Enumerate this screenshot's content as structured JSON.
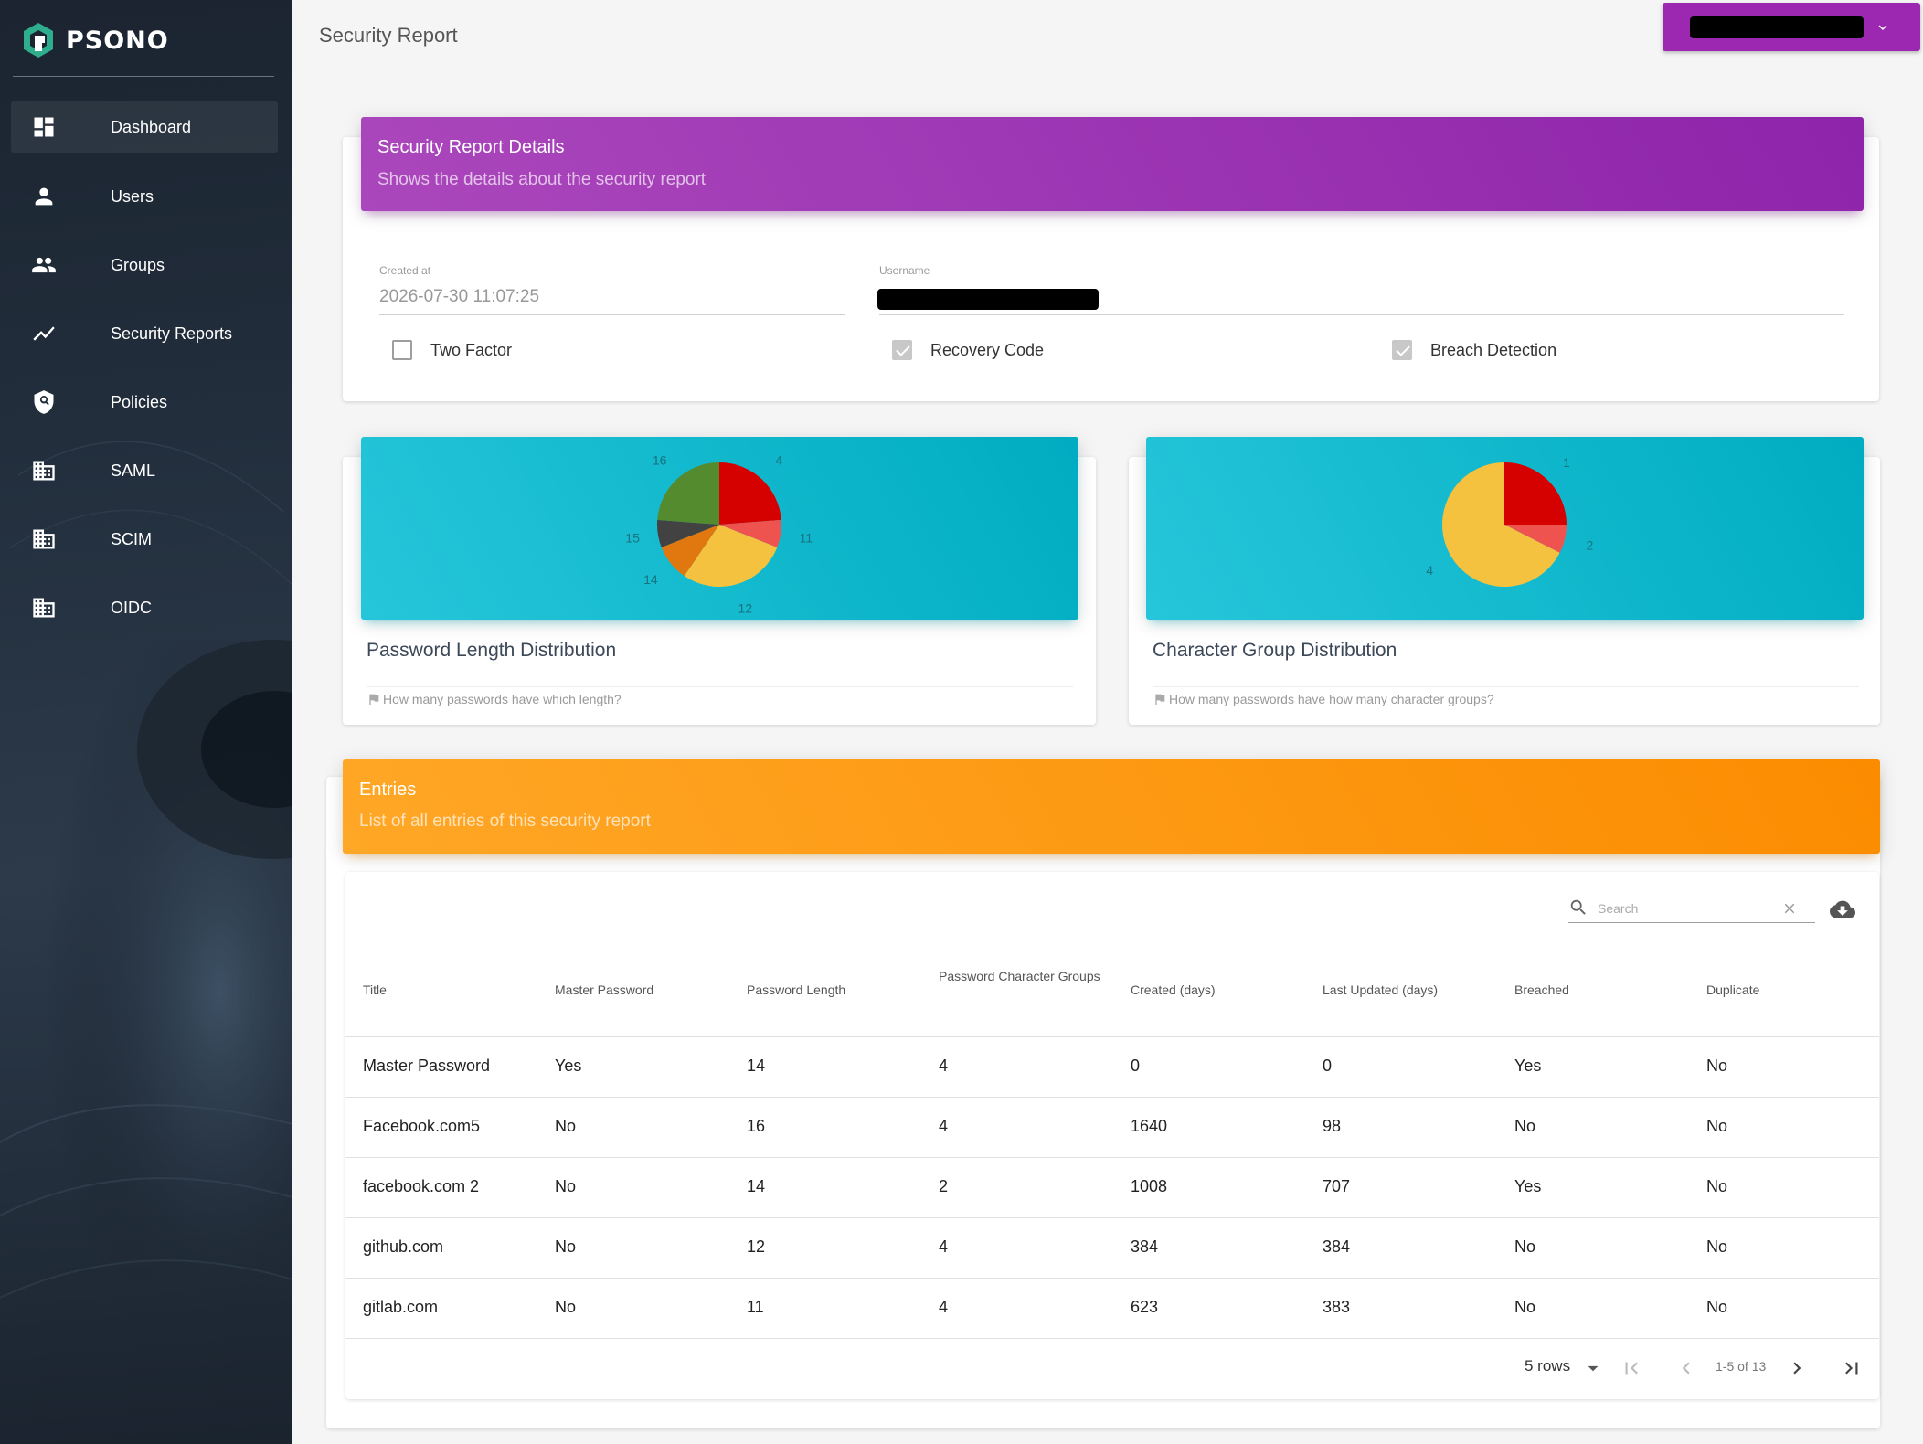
{
  "app": {
    "name": "PSONO"
  },
  "sidebar": {
    "items": [
      {
        "label": "Dashboard",
        "icon": "dashboard-icon"
      },
      {
        "label": "Users",
        "icon": "person-icon"
      },
      {
        "label": "Groups",
        "icon": "people-icon"
      },
      {
        "label": "Security Reports",
        "icon": "trending-icon"
      },
      {
        "label": "Policies",
        "icon": "shield-icon"
      },
      {
        "label": "SAML",
        "icon": "building-icon"
      },
      {
        "label": "SCIM",
        "icon": "building-icon"
      },
      {
        "label": "OIDC",
        "icon": "building-icon"
      }
    ]
  },
  "header": {
    "title": "Security Report"
  },
  "details": {
    "title": "Security Report Details",
    "subtitle": "Shows the details about the security report",
    "created_label": "Created at",
    "created_value": "2026-07-30 11:07:25",
    "username_label": "Username",
    "checks": [
      {
        "label": "Two Factor",
        "checked": false
      },
      {
        "label": "Recovery Code",
        "checked": true
      },
      {
        "label": "Breach Detection",
        "checked": true
      }
    ]
  },
  "chart_data": [
    {
      "type": "pie",
      "title": "Password Length Distribution",
      "footer": "How many passwords have which length?",
      "slices": [
        {
          "label": "4",
          "value": 1,
          "color": "#d50000"
        },
        {
          "label": "11",
          "value": 0.3,
          "color": "#ef5350"
        },
        {
          "label": "12",
          "value": 1.2,
          "color": "#f4c23f"
        },
        {
          "label": "14",
          "value": 0.4,
          "color": "#e0780f"
        },
        {
          "label": "15",
          "value": 0.3,
          "color": "#424242"
        },
        {
          "label": "16",
          "value": 1,
          "color": "#558b2f"
        }
      ]
    },
    {
      "type": "pie",
      "title": "Character Group Distribution",
      "footer": "How many passwords have how many character groups?",
      "slices": [
        {
          "label": "1",
          "value": 1,
          "color": "#d50000"
        },
        {
          "label": "2",
          "value": 0.3,
          "color": "#ef5350"
        },
        {
          "label": "4",
          "value": 2.7,
          "color": "#f4c23f"
        }
      ]
    }
  ],
  "entries": {
    "title": "Entries",
    "subtitle": "List of all entries of this security report",
    "search_placeholder": "Search",
    "columns": [
      "Title",
      "Master Password",
      "Password Length",
      "Password Character Groups",
      "Created (days)",
      "Last Updated (days)",
      "Breached",
      "Duplicate"
    ],
    "rows": [
      [
        "Master Password",
        "Yes",
        "14",
        "4",
        "0",
        "0",
        "Yes",
        "No"
      ],
      [
        "Facebook.com5",
        "No",
        "16",
        "4",
        "1640",
        "98",
        "No",
        "No"
      ],
      [
        "facebook.com 2",
        "No",
        "14",
        "2",
        "1008",
        "707",
        "Yes",
        "No"
      ],
      [
        "github.com",
        "No",
        "12",
        "4",
        "384",
        "384",
        "No",
        "No"
      ],
      [
        "gitlab.com",
        "No",
        "11",
        "4",
        "623",
        "383",
        "No",
        "No"
      ]
    ],
    "rows_per_page": "5 rows",
    "page_info": "1-5 of 13"
  }
}
